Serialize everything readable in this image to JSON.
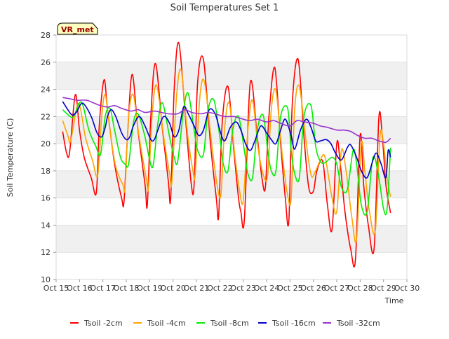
{
  "chart_data": {
    "type": "line",
    "title": "Soil Temperatures Set 1",
    "xlabel": "Time",
    "ylabel": "Soil Temperature (C)",
    "badge": "VR_met",
    "xlim": [
      0,
      15
    ],
    "ylim": [
      10,
      28
    ],
    "x_ticks": [
      0,
      1,
      2,
      3,
      4,
      5,
      6,
      7,
      8,
      9,
      10,
      11,
      12,
      13,
      14,
      15
    ],
    "x_tick_labels": [
      "Oct 15",
      "Oct 16",
      "Oct 17",
      "Oct 18",
      "Oct 19",
      "Oct 20",
      "Oct 21",
      "Oct 22",
      "Oct 23",
      "Oct 24",
      "Oct 25",
      "Oct 26",
      "Oct 27",
      "Oct 28",
      "Oct 29",
      "Oct 30"
    ],
    "y_ticks": [
      10,
      12,
      14,
      16,
      18,
      20,
      22,
      24,
      26,
      28
    ],
    "y_tick_labels": [
      "10",
      "12",
      "14",
      "16",
      "18",
      "20",
      "22",
      "24",
      "26",
      "28"
    ],
    "grid": "horizontal bands",
    "legend_position": "bottom",
    "series": [
      {
        "name": "Tsoil -2cm",
        "color": "#ff0000",
        "x": [
          0.28,
          0.45,
          0.58,
          0.82,
          1.0,
          1.2,
          1.5,
          1.72,
          1.85,
          2.05,
          2.2,
          2.5,
          2.8,
          2.9,
          3.05,
          3.25,
          3.5,
          3.8,
          3.9,
          4.05,
          4.25,
          4.55,
          4.8,
          4.9,
          5.05,
          5.25,
          5.55,
          5.78,
          5.9,
          6.05,
          6.3,
          6.6,
          6.85,
          6.95,
          7.1,
          7.35,
          7.6,
          7.8,
          7.9,
          8.05,
          8.3,
          8.6,
          8.8,
          8.95,
          9.1,
          9.35,
          9.6,
          9.8,
          9.95,
          10.1,
          10.35,
          10.6,
          10.8,
          11.0,
          11.15,
          11.4,
          11.6,
          11.8,
          12.0,
          12.15,
          12.35,
          12.6,
          12.8,
          13.0,
          13.15,
          13.35,
          13.6,
          13.8,
          13.95,
          14.1,
          14.3
        ],
        "values": [
          20.9,
          19.3,
          19.4,
          23.6,
          21.0,
          19.0,
          17.5,
          16.4,
          21.5,
          24.7,
          22.5,
          18.5,
          16.0,
          15.7,
          20.5,
          25.1,
          21.0,
          17.0,
          15.5,
          22.0,
          25.9,
          21.0,
          17.2,
          16.0,
          24.0,
          27.4,
          21.5,
          17.0,
          17.0,
          24.5,
          26.2,
          20.0,
          16.0,
          14.7,
          21.5,
          24.2,
          19.5,
          16.0,
          15.0,
          14.4,
          24.5,
          20.5,
          17.5,
          16.8,
          22.0,
          25.6,
          20.0,
          16.0,
          14.3,
          23.0,
          26.2,
          20.5,
          16.8,
          16.5,
          18.0,
          18.7,
          15.5,
          13.7,
          20.0,
          18.5,
          15.0,
          12.2,
          11.5,
          20.6,
          17.0,
          14.0,
          12.3,
          21.9,
          20.5,
          17.0,
          14.9
        ]
      },
      {
        "name": "Tsoil -4cm",
        "color": "#ffa500",
        "x": [
          0.28,
          0.5,
          0.62,
          0.9,
          1.05,
          1.25,
          1.55,
          1.78,
          1.95,
          2.1,
          2.3,
          2.55,
          2.85,
          2.95,
          3.1,
          3.3,
          3.55,
          3.85,
          3.95,
          4.1,
          4.3,
          4.6,
          4.85,
          4.95,
          5.15,
          5.35,
          5.6,
          5.85,
          5.95,
          6.15,
          6.35,
          6.65,
          6.9,
          7.05,
          7.2,
          7.4,
          7.65,
          7.85,
          8.0,
          8.2,
          8.4,
          8.65,
          8.9,
          9.05,
          9.2,
          9.4,
          9.65,
          9.9,
          10.05,
          10.2,
          10.4,
          10.7,
          10.9,
          11.05,
          11.3,
          11.5,
          11.8,
          12.0,
          12.2,
          12.4,
          12.65,
          12.85,
          13.05,
          13.2,
          13.4,
          13.65,
          13.85,
          14.0,
          14.15,
          14.3
        ],
        "values": [
          21.7,
          20.6,
          20.2,
          22.8,
          22.5,
          20.5,
          18.8,
          17.7,
          22.0,
          23.6,
          21.0,
          18.3,
          17.0,
          16.8,
          22.0,
          23.6,
          20.5,
          17.5,
          16.8,
          22.0,
          24.3,
          20.5,
          17.8,
          17.2,
          23.5,
          25.4,
          21.0,
          18.0,
          17.8,
          23.5,
          24.5,
          20.0,
          16.8,
          16.3,
          21.0,
          23.0,
          19.0,
          16.5,
          15.8,
          21.0,
          23.2,
          19.5,
          17.5,
          17.8,
          22.5,
          23.9,
          19.5,
          16.2,
          16.0,
          22.5,
          24.2,
          20.0,
          17.7,
          17.8,
          18.8,
          19.0,
          16.0,
          15.0,
          19.5,
          18.0,
          14.5,
          13.0,
          20.0,
          18.0,
          15.0,
          13.6,
          20.6,
          20.0,
          17.5,
          16.1
        ]
      },
      {
        "name": "Tsoil -8cm",
        "color": "#00ee00",
        "x": [
          0.28,
          0.6,
          0.75,
          1.0,
          1.15,
          1.4,
          1.7,
          1.9,
          2.1,
          2.3,
          2.5,
          2.75,
          2.95,
          3.1,
          3.3,
          3.5,
          3.8,
          4.0,
          4.15,
          4.35,
          4.55,
          4.85,
          5.05,
          5.2,
          5.45,
          5.65,
          5.9,
          6.05,
          6.3,
          6.5,
          6.75,
          7.0,
          7.15,
          7.35,
          7.55,
          7.8,
          8.05,
          8.2,
          8.4,
          8.6,
          8.85,
          9.05,
          9.2,
          9.4,
          9.6,
          9.9,
          10.05,
          10.2,
          10.4,
          10.6,
          10.9,
          11.1,
          11.3,
          11.5,
          11.8,
          12.0,
          12.2,
          12.45,
          12.7,
          12.85,
          13.05,
          13.3,
          13.55,
          13.8,
          14.0,
          14.15,
          14.3
        ],
        "values": [
          22.5,
          22.0,
          22.0,
          23.0,
          22.8,
          21.0,
          19.8,
          19.2,
          22.0,
          22.6,
          21.0,
          19.0,
          18.5,
          18.5,
          21.5,
          22.2,
          20.5,
          18.8,
          18.4,
          21.5,
          23.0,
          20.5,
          19.0,
          18.7,
          22.5,
          23.7,
          21.0,
          19.5,
          19.2,
          22.5,
          23.2,
          20.5,
          18.5,
          18.0,
          21.0,
          22.0,
          19.5,
          17.8,
          17.5,
          21.0,
          22.1,
          19.5,
          18.0,
          18.0,
          22.0,
          22.6,
          19.5,
          17.8,
          17.5,
          22.0,
          22.8,
          19.8,
          18.7,
          18.6,
          19.0,
          18.5,
          16.8,
          16.6,
          19.5,
          18.5,
          15.5,
          15.0,
          19.0,
          17.5,
          15.2,
          15.2,
          19.7
        ]
      },
      {
        "name": "Tsoil -16cm",
        "color": "#0000cc",
        "x": [
          0.28,
          0.5,
          0.7,
          0.9,
          1.05,
          1.2,
          1.5,
          1.75,
          1.95,
          2.1,
          2.2,
          2.35,
          2.55,
          2.8,
          3.0,
          3.15,
          3.3,
          3.55,
          3.8,
          4.05,
          4.2,
          4.35,
          4.6,
          4.85,
          5.05,
          5.25,
          5.45,
          5.65,
          5.9,
          6.1,
          6.3,
          6.55,
          6.8,
          7.0,
          7.2,
          7.45,
          7.7,
          7.9,
          8.1,
          8.3,
          8.5,
          8.75,
          9.0,
          9.2,
          9.4,
          9.6,
          9.8,
          10.05,
          10.2,
          10.45,
          10.7,
          10.9,
          11.1,
          11.3,
          11.55,
          11.75,
          11.95,
          12.2,
          12.45,
          12.6,
          12.85,
          13.05,
          13.3,
          13.55,
          13.7,
          13.9,
          14.1,
          14.2,
          14.3
        ],
        "values": [
          23.1,
          22.5,
          22.1,
          22.4,
          22.9,
          22.9,
          22.0,
          20.8,
          20.5,
          21.2,
          22.0,
          22.5,
          22.0,
          20.8,
          20.3,
          20.5,
          21.3,
          22.0,
          21.3,
          20.3,
          20.3,
          21.0,
          22.0,
          21.5,
          20.5,
          21.0,
          22.7,
          22.2,
          21.3,
          20.6,
          21.0,
          22.5,
          22.2,
          21.0,
          20.2,
          21.2,
          21.6,
          21.0,
          20.0,
          19.5,
          20.2,
          21.3,
          20.8,
          20.3,
          20.0,
          21.0,
          21.8,
          20.6,
          19.6,
          21.0,
          21.8,
          21.2,
          20.2,
          20.2,
          20.3,
          20.0,
          19.3,
          18.8,
          19.7,
          19.9,
          19.0,
          18.0,
          17.5,
          18.8,
          19.3,
          18.5,
          17.5,
          19.5,
          19.0
        ]
      },
      {
        "name": "Tsoil -32cm",
        "color": "#9933cc",
        "x": [
          0.28,
          0.6,
          0.9,
          1.3,
          1.6,
          1.9,
          2.2,
          2.5,
          2.8,
          3.2,
          3.5,
          3.8,
          4.2,
          4.5,
          4.8,
          5.2,
          5.5,
          5.8,
          6.2,
          6.5,
          6.8,
          7.2,
          7.6,
          8.0,
          8.3,
          8.6,
          9.0,
          9.3,
          9.6,
          10.0,
          10.3,
          10.6,
          11.0,
          11.3,
          11.6,
          12.0,
          12.3,
          12.6,
          12.9,
          13.2,
          13.5,
          13.8,
          14.1,
          14.3
        ],
        "values": [
          23.4,
          23.3,
          23.2,
          23.2,
          23.0,
          22.8,
          22.7,
          22.8,
          22.6,
          22.4,
          22.5,
          22.3,
          22.4,
          22.3,
          22.2,
          22.2,
          22.5,
          22.3,
          22.2,
          22.3,
          22.2,
          22.0,
          22.0,
          21.8,
          21.7,
          21.8,
          21.6,
          21.7,
          21.5,
          21.3,
          21.7,
          21.6,
          21.5,
          21.3,
          21.2,
          21.0,
          21.0,
          20.9,
          20.6,
          20.4,
          20.4,
          20.2,
          20.1,
          20.4
        ]
      }
    ]
  }
}
